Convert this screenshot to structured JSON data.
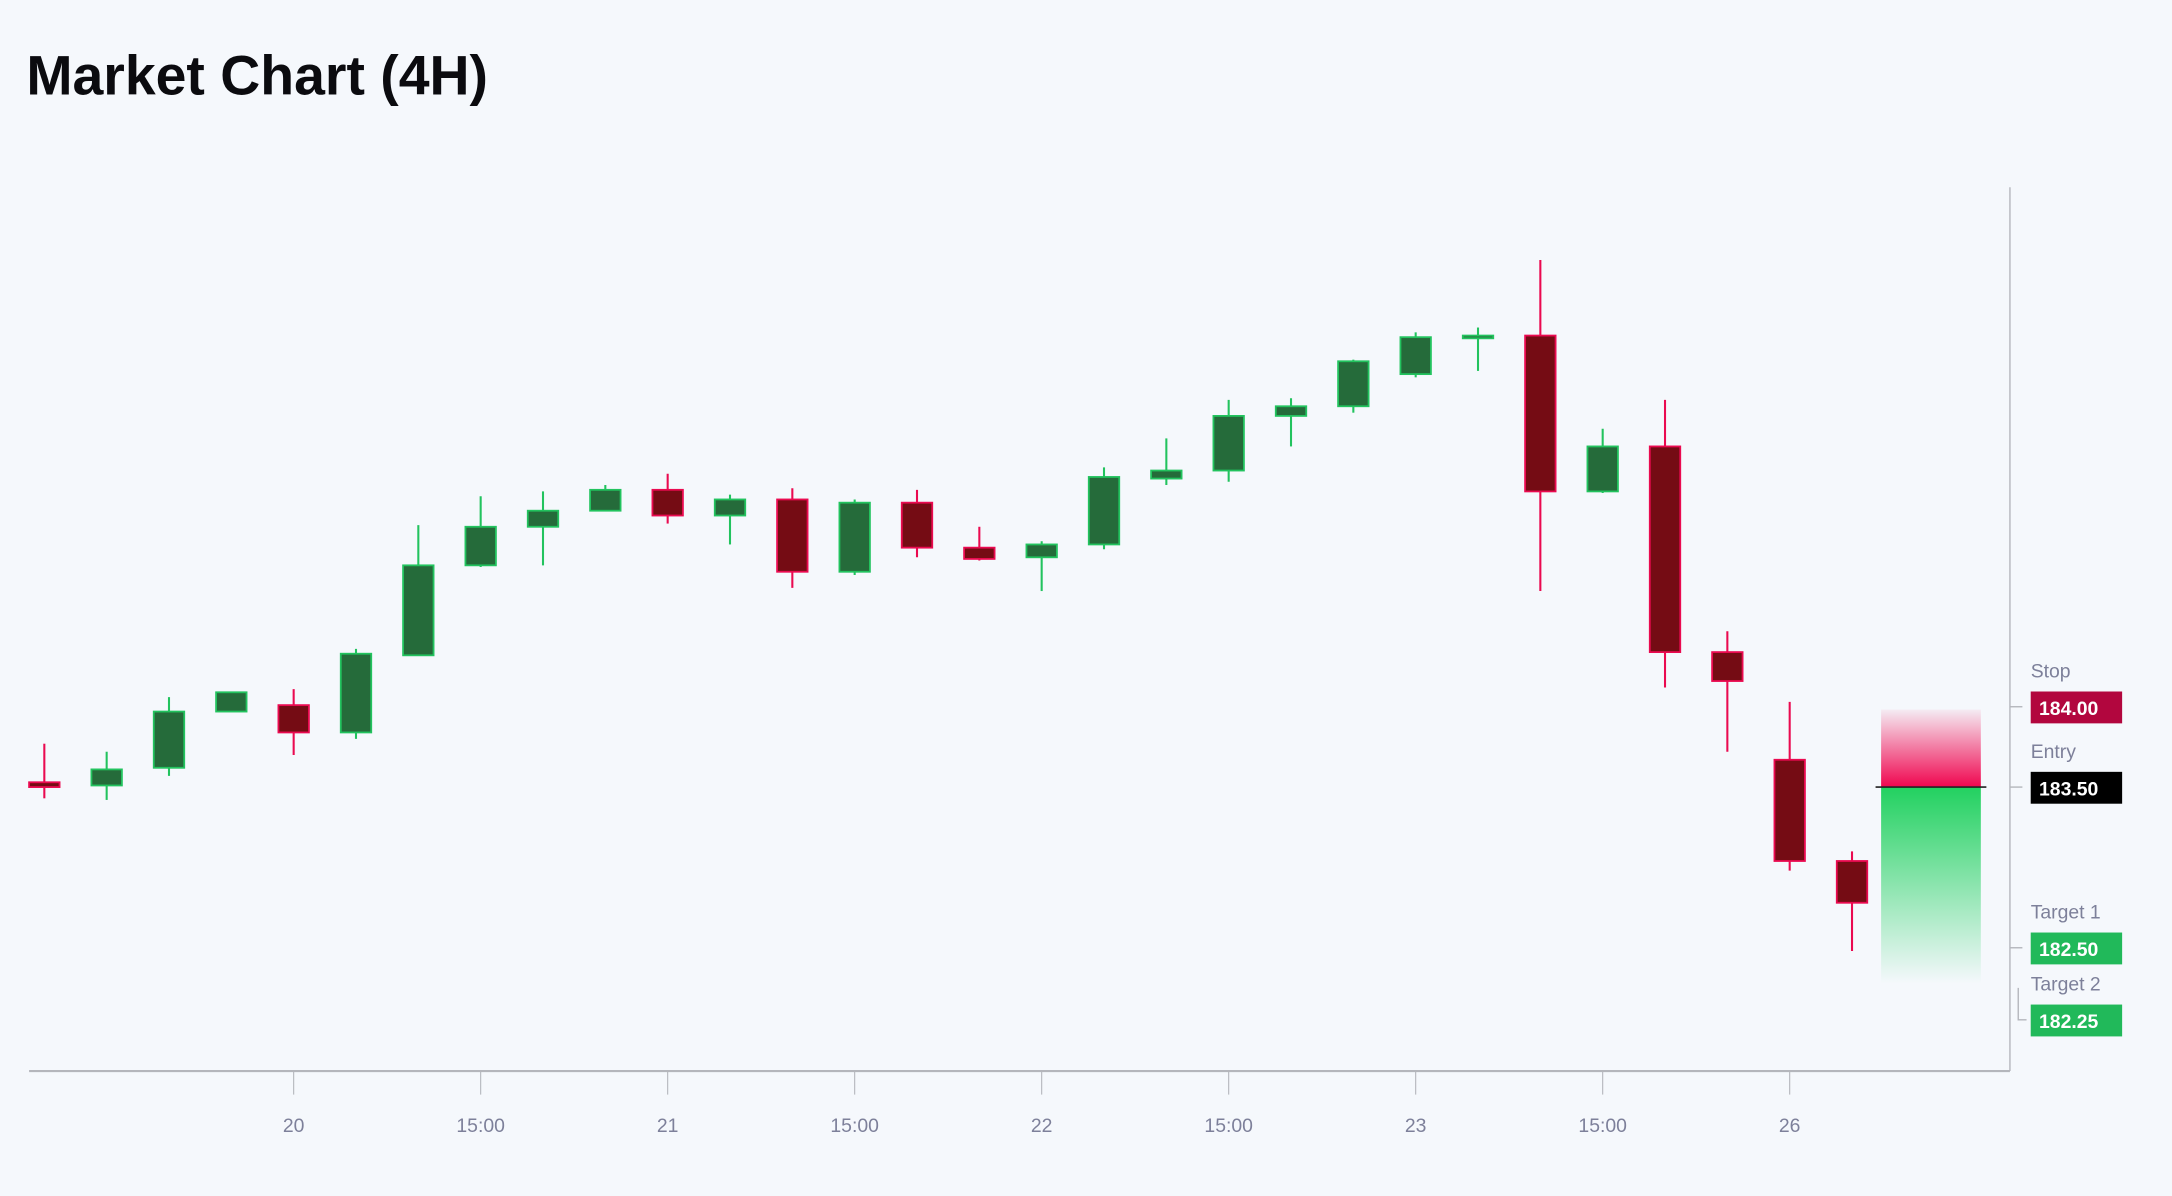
{
  "chart_data": {
    "type": "candlestick",
    "title": "Market Chart (4H)",
    "x_tick_labels": [
      "20",
      "15:00",
      "21",
      "15:00",
      "22",
      "15:00",
      "23",
      "15:00",
      "26"
    ],
    "colors": {
      "up_body": "#256b3a",
      "up_border": "#22c35e",
      "down_body": "#750c14",
      "down_border": "#ea0a50",
      "stop": "#b2063e",
      "entry": "#000000",
      "target": "#21b95a",
      "background": "#f5f8fc"
    },
    "candles": [
      {
        "o": 183.53,
        "h": 183.77,
        "l": 183.43,
        "c": 183.5
      },
      {
        "o": 183.51,
        "h": 183.72,
        "l": 183.42,
        "c": 183.61
      },
      {
        "o": 183.62,
        "h": 184.06,
        "l": 183.57,
        "c": 183.97
      },
      {
        "o": 183.97,
        "h": 184.09,
        "l": 183.97,
        "c": 184.09
      },
      {
        "o": 184.01,
        "h": 184.11,
        "l": 183.7,
        "c": 183.84
      },
      {
        "o": 183.84,
        "h": 184.36,
        "l": 183.8,
        "c": 184.33
      },
      {
        "o": 184.32,
        "h": 185.13,
        "l": 184.32,
        "c": 184.88
      },
      {
        "o": 184.88,
        "h": 185.31,
        "l": 184.87,
        "c": 185.12
      },
      {
        "o": 185.12,
        "h": 185.34,
        "l": 184.88,
        "c": 185.22
      },
      {
        "o": 185.22,
        "h": 185.38,
        "l": 185.22,
        "c": 185.35
      },
      {
        "o": 185.35,
        "h": 185.45,
        "l": 185.14,
        "c": 185.19
      },
      {
        "o": 185.19,
        "h": 185.32,
        "l": 185.01,
        "c": 185.29
      },
      {
        "o": 185.29,
        "h": 185.36,
        "l": 184.74,
        "c": 184.84
      },
      {
        "o": 184.84,
        "h": 185.29,
        "l": 184.82,
        "c": 185.27
      },
      {
        "o": 185.27,
        "h": 185.35,
        "l": 184.93,
        "c": 184.99
      },
      {
        "o": 184.99,
        "h": 185.12,
        "l": 184.91,
        "c": 184.92
      },
      {
        "o": 184.93,
        "h": 185.03,
        "l": 184.72,
        "c": 185.01
      },
      {
        "o": 185.01,
        "h": 185.49,
        "l": 184.98,
        "c": 185.43
      },
      {
        "o": 185.42,
        "h": 185.67,
        "l": 185.38,
        "c": 185.47
      },
      {
        "o": 185.47,
        "h": 185.91,
        "l": 185.4,
        "c": 185.81
      },
      {
        "o": 185.81,
        "h": 185.92,
        "l": 185.62,
        "c": 185.87
      },
      {
        "o": 185.87,
        "h": 186.16,
        "l": 185.83,
        "c": 186.15
      },
      {
        "o": 186.07,
        "h": 186.33,
        "l": 186.05,
        "c": 186.3
      },
      {
        "o": 186.3,
        "h": 186.36,
        "l": 186.09,
        "c": 186.31
      },
      {
        "o": 186.31,
        "h": 186.78,
        "l": 184.72,
        "c": 185.34
      },
      {
        "o": 185.34,
        "h": 185.73,
        "l": 185.33,
        "c": 185.62
      },
      {
        "o": 185.62,
        "h": 185.91,
        "l": 184.12,
        "c": 184.34
      },
      {
        "o": 184.34,
        "h": 184.47,
        "l": 183.72,
        "c": 184.16
      },
      {
        "o": 183.67,
        "h": 184.03,
        "l": 182.98,
        "c": 183.04
      },
      {
        "o": 183.04,
        "h": 183.1,
        "l": 182.48,
        "c": 182.78
      }
    ],
    "levels": {
      "stop": {
        "label": "Stop",
        "price": 184.0,
        "text": "184.00"
      },
      "entry": {
        "label": "Entry",
        "price": 183.5,
        "text": "183.50"
      },
      "target1": {
        "label": "Target 1",
        "price": 182.5,
        "text": "182.50"
      },
      "target2": {
        "label": "Target 2",
        "price": 182.25,
        "text": "182.25"
      }
    },
    "grid": false
  }
}
